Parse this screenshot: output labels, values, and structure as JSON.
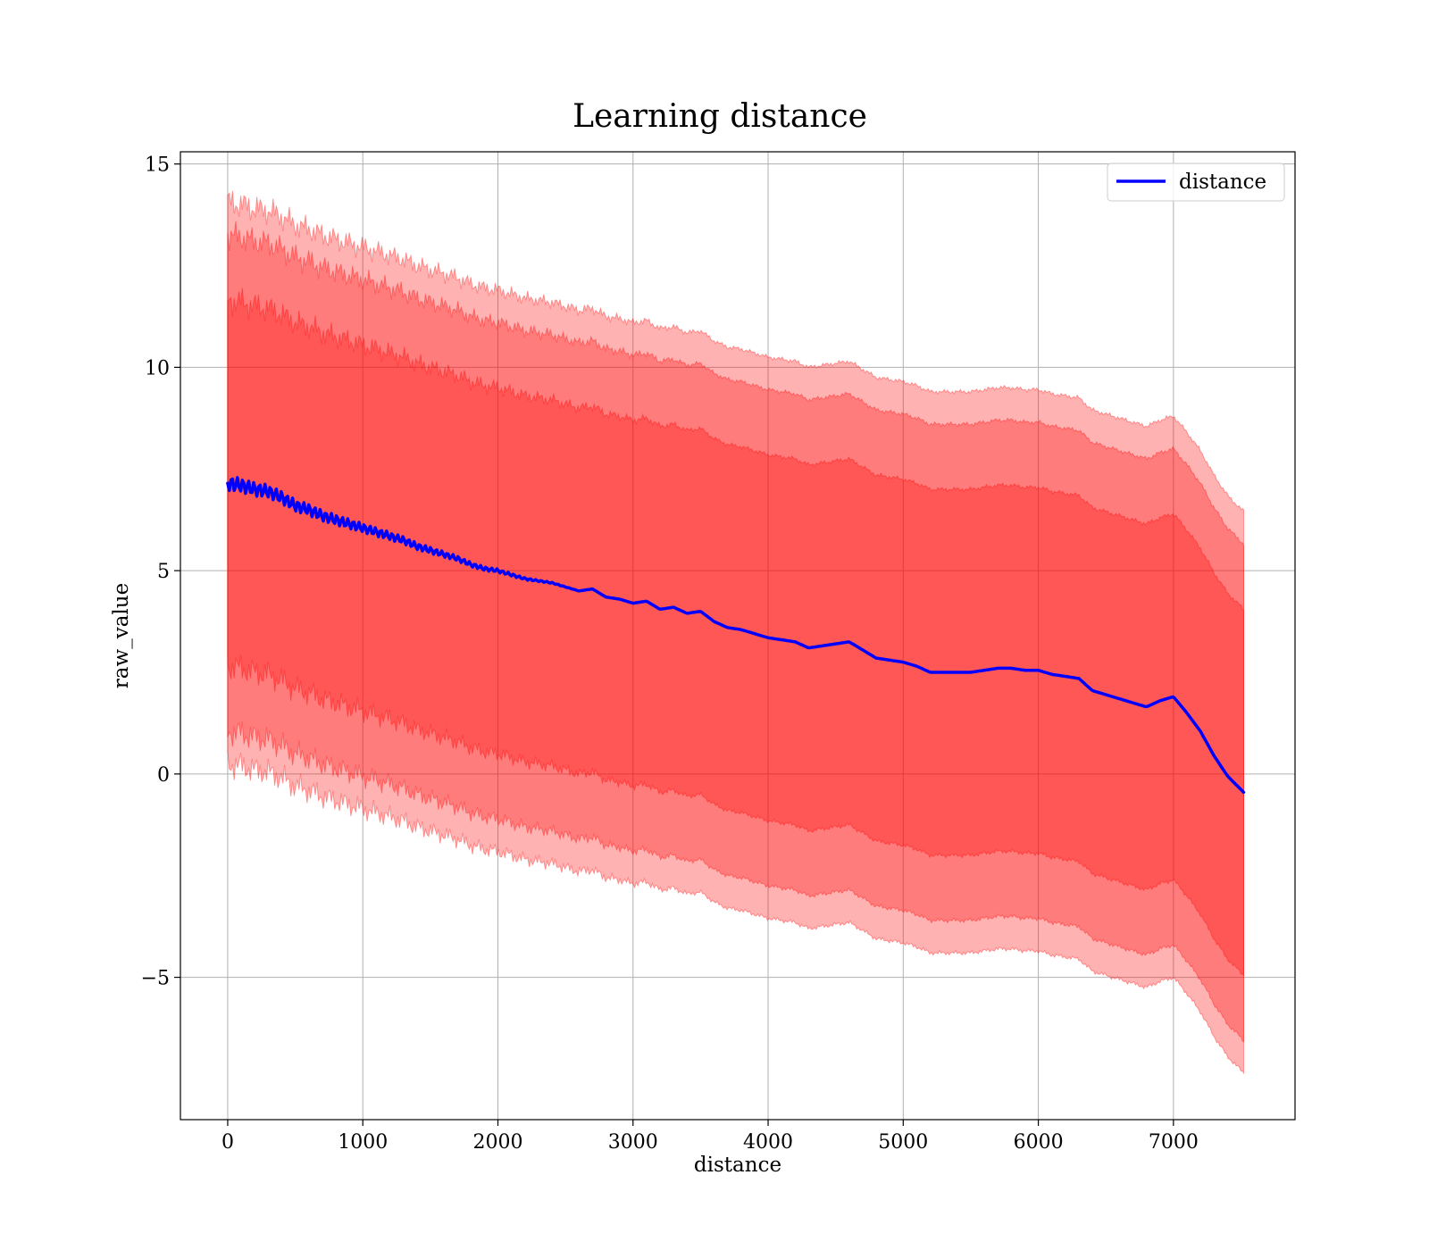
{
  "chart_data": {
    "type": "line",
    "title": "Learning distance",
    "xlabel": "distance",
    "ylabel": "raw_value",
    "xlim": [
      -350,
      7900
    ],
    "ylim": [
      -8.5,
      15.3
    ],
    "x_ticks": [
      0,
      1000,
      2000,
      3000,
      4000,
      5000,
      6000,
      7000
    ],
    "x_tick_labels": [
      "0",
      "1000",
      "2000",
      "3000",
      "4000",
      "5000",
      "6000",
      "7000"
    ],
    "y_ticks": [
      -5,
      0,
      5,
      10,
      15
    ],
    "y_tick_labels": [
      "−5",
      "0",
      "5",
      "10",
      "15"
    ],
    "grid": true,
    "legend_position": "top-right",
    "colors": {
      "line": "#0000ff",
      "band": "#ff0000",
      "grid": "#b0b0b0",
      "legend_border": "#cccccc"
    },
    "bands": [
      {
        "sigma_multiple": 3,
        "upper_offset": 6.9,
        "lower_offset": 6.9,
        "opacity": 0.3
      },
      {
        "sigma_multiple": 2,
        "upper_offset": 6.1,
        "lower_offset": 6.1,
        "opacity": 0.3
      },
      {
        "sigma_multiple": 1,
        "upper_offset": 4.5,
        "lower_offset": 4.5,
        "opacity": 0.3
      }
    ],
    "series": [
      {
        "name": "distance",
        "x": [
          0,
          100,
          200,
          300,
          400,
          500,
          600,
          700,
          800,
          900,
          1000,
          1100,
          1200,
          1300,
          1400,
          1500,
          1600,
          1700,
          1800,
          1900,
          2000,
          2100,
          2200,
          2300,
          2400,
          2500,
          2600,
          2700,
          2800,
          2900,
          3000,
          3100,
          3200,
          3300,
          3400,
          3500,
          3600,
          3700,
          3800,
          3900,
          4000,
          4100,
          4200,
          4300,
          4400,
          4500,
          4600,
          4700,
          4800,
          4900,
          5000,
          5100,
          5200,
          5300,
          5400,
          5500,
          5600,
          5700,
          5800,
          5900,
          6000,
          6100,
          6200,
          6300,
          6400,
          6500,
          6600,
          6700,
          6800,
          6900,
          7000,
          7100,
          7200,
          7300,
          7400,
          7520
        ],
        "y": [
          7.15,
          7.1,
          7.0,
          6.95,
          6.8,
          6.6,
          6.5,
          6.35,
          6.25,
          6.15,
          6.05,
          5.95,
          5.85,
          5.75,
          5.6,
          5.5,
          5.4,
          5.3,
          5.15,
          5.05,
          5.0,
          4.9,
          4.8,
          4.75,
          4.7,
          4.6,
          4.5,
          4.55,
          4.35,
          4.3,
          4.2,
          4.25,
          4.05,
          4.1,
          3.95,
          4.0,
          3.75,
          3.6,
          3.55,
          3.45,
          3.35,
          3.3,
          3.25,
          3.1,
          3.15,
          3.2,
          3.25,
          3.05,
          2.85,
          2.8,
          2.75,
          2.65,
          2.5,
          2.5,
          2.5,
          2.5,
          2.55,
          2.6,
          2.6,
          2.55,
          2.55,
          2.45,
          2.4,
          2.35,
          2.05,
          1.95,
          1.85,
          1.75,
          1.65,
          1.8,
          1.9,
          1.5,
          1.05,
          0.45,
          -0.05,
          -0.45
        ]
      }
    ]
  }
}
